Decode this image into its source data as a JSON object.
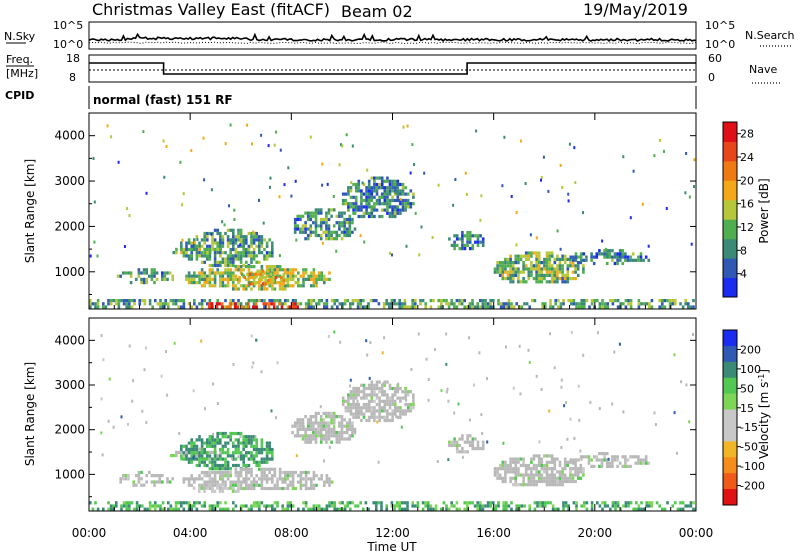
{
  "header": {
    "title": "Christmas Valley East (fitACF)",
    "beam": "Beam 02",
    "date": "19/May/2019"
  },
  "panels": {
    "nsky_label": "N.Sky",
    "nsky_ticks": [
      "10^5",
      "10^0"
    ],
    "nsearch_label": "N.Search",
    "nsearch_ticks": [
      "10^5",
      "10^0"
    ],
    "freq_label_1": "Freq.",
    "freq_label_2": "[MHz]",
    "freq_ticks": [
      "18",
      "8"
    ],
    "nave_label": "Nave",
    "nave_ticks": [
      "60",
      "0"
    ],
    "cpid_label": "CPID",
    "cpid_text": "normal (fast) 151 RF"
  },
  "colors": {
    "power_scale": [
      "#1a2cf0",
      "#2f59b4",
      "#3b8a76",
      "#4fae4f",
      "#b6c73a",
      "#f3a81a",
      "#f07a12",
      "#e8461a",
      "#e00f16"
    ],
    "velocity_scale": [
      "#1a2cf0",
      "#2f59b4",
      "#3b8a76",
      "#52c752",
      "#7ed657",
      "#c8c8c8",
      "#c8c8c8",
      "#f2b526",
      "#f58c1c",
      "#ef5a18",
      "#e11212"
    ],
    "ground_scatter": "#b8b8b8"
  },
  "chart_data": [
    {
      "type": "heatmap",
      "title": "",
      "xlabel": "Time UT",
      "ylabel": "Slant Range [km]",
      "x_ticks": [
        "00:00",
        "04:00",
        "08:00",
        "12:00",
        "16:00",
        "20:00",
        "00:00"
      ],
      "xlim_hours": [
        0,
        24
      ],
      "y_ticks": [
        1000,
        2000,
        3000,
        4000
      ],
      "ylim": [
        180,
        4500
      ],
      "colorbar": {
        "label": "Power [dB]",
        "ticks": [
          4,
          8,
          12,
          16,
          20,
          24,
          28
        ],
        "range": [
          0,
          30
        ]
      },
      "patches": [
        {
          "start_hour": 1.1,
          "end_hour": 3.3,
          "range_min": 780,
          "range_max": 1080,
          "value": 9
        },
        {
          "start_hour": 3.2,
          "end_hour": 5.2,
          "range_min": 1400,
          "range_max": 1600,
          "value": 12
        },
        {
          "start_hour": 3.6,
          "end_hour": 7.3,
          "range_min": 1150,
          "range_max": 1950,
          "value": 10
        },
        {
          "start_hour": 3.7,
          "end_hour": 9.6,
          "range_min": 650,
          "range_max": 1150,
          "value": 14
        },
        {
          "start_hour": 5.8,
          "end_hour": 7.8,
          "range_min": 700,
          "range_max": 1050,
          "value": 19
        },
        {
          "start_hour": 8.0,
          "end_hour": 10.5,
          "range_min": 1700,
          "range_max": 2400,
          "value": 9
        },
        {
          "start_hour": 10.0,
          "end_hour": 12.8,
          "range_min": 2200,
          "range_max": 3100,
          "value": 8
        },
        {
          "start_hour": 14.2,
          "end_hour": 15.6,
          "range_min": 1500,
          "range_max": 1900,
          "value": 7
        },
        {
          "start_hour": 16.0,
          "end_hour": 19.5,
          "range_min": 750,
          "range_max": 1450,
          "value": 12
        },
        {
          "start_hour": 19.0,
          "end_hour": 22.2,
          "range_min": 1200,
          "range_max": 1500,
          "value": 8
        },
        {
          "start_hour": 0.0,
          "end_hour": 24.0,
          "range_min": 180,
          "range_max": 400,
          "value": 10
        },
        {
          "start_hour": 4.6,
          "end_hour": 8.3,
          "range_min": 180,
          "range_max": 330,
          "value": 27
        }
      ]
    },
    {
      "type": "heatmap",
      "title": "",
      "xlabel": "Time UT",
      "ylabel": "Slant Range [km]",
      "x_ticks": [
        "00:00",
        "04:00",
        "08:00",
        "12:00",
        "16:00",
        "20:00",
        "00:00"
      ],
      "xlim_hours": [
        0,
        24
      ],
      "y_ticks": [
        1000,
        2000,
        3000,
        4000
      ],
      "ylim": [
        180,
        4500
      ],
      "colorbar": {
        "label": "Velocity [m s-1]",
        "label_parts": [
          "Velocity [m s",
          "-1",
          "]"
        ],
        "ticks": [
          "200",
          "100",
          "50",
          "15",
          "-15",
          "-50",
          "-100",
          "-200"
        ],
        "range": [
          -250,
          250
        ]
      },
      "patches": [
        {
          "start_hour": 1.1,
          "end_hour": 3.3,
          "range_min": 780,
          "range_max": 1080,
          "value": 0,
          "ground": true
        },
        {
          "start_hour": 3.2,
          "end_hour": 5.2,
          "range_min": 1350,
          "range_max": 1600,
          "value": 0,
          "ground": true
        },
        {
          "start_hour": 3.6,
          "end_hour": 7.3,
          "range_min": 1150,
          "range_max": 1950,
          "value": 60
        },
        {
          "start_hour": 3.7,
          "end_hour": 9.6,
          "range_min": 650,
          "range_max": 1150,
          "value": 0,
          "ground": true
        },
        {
          "start_hour": 4.0,
          "end_hour": 6.0,
          "range_min": 600,
          "range_max": 800,
          "value": -40
        },
        {
          "start_hour": 8.0,
          "end_hour": 10.5,
          "range_min": 1700,
          "range_max": 2400,
          "value": 0,
          "ground": true
        },
        {
          "start_hour": 10.0,
          "end_hour": 12.8,
          "range_min": 2200,
          "range_max": 3100,
          "value": 0,
          "ground": true
        },
        {
          "start_hour": 14.2,
          "end_hour": 15.6,
          "range_min": 1500,
          "range_max": 1900,
          "value": 0,
          "ground": true
        },
        {
          "start_hour": 16.0,
          "end_hour": 19.5,
          "range_min": 750,
          "range_max": 1450,
          "value": 0,
          "ground": true
        },
        {
          "start_hour": 19.0,
          "end_hour": 22.2,
          "range_min": 1200,
          "range_max": 1500,
          "value": 0,
          "ground": true
        },
        {
          "start_hour": 0.0,
          "end_hour": 24.0,
          "range_min": 180,
          "range_max": 400,
          "value": 40
        }
      ]
    }
  ]
}
